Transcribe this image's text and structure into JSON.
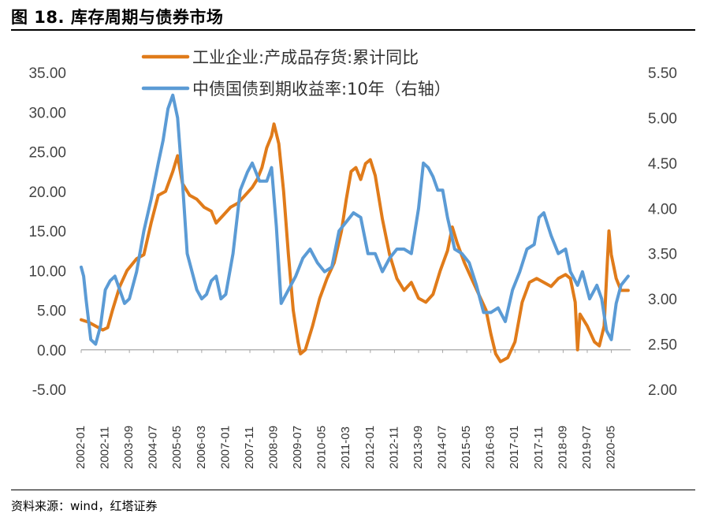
{
  "figure_title": "图 18. 库存周期与债券市场",
  "source_note": "资料来源：wind，红塔证券",
  "chart_data": {
    "type": "line",
    "left_axis": {
      "ylim": [
        -5,
        35
      ],
      "ticks": [
        "35.00",
        "30.00",
        "25.00",
        "20.00",
        "15.00",
        "10.00",
        "5.00",
        "0.00",
        "-5.00"
      ],
      "tick_values": [
        35,
        30,
        25,
        20,
        15,
        10,
        5,
        0,
        -5
      ]
    },
    "right_axis": {
      "ylim": [
        2.0,
        5.5
      ],
      "ticks": [
        "5.50",
        "5.00",
        "4.50",
        "4.00",
        "3.50",
        "3.00",
        "2.50",
        "2.00"
      ],
      "tick_values": [
        5.5,
        5.0,
        4.5,
        4.0,
        3.5,
        3.0,
        2.5,
        2.0
      ]
    },
    "x_axis": {
      "start": "2002-01",
      "end": "2021-01",
      "tick_labels": [
        "2002-01",
        "2002-11",
        "2003-09",
        "2004-07",
        "2005-05",
        "2006-03",
        "2007-01",
        "2007-11",
        "2008-09",
        "2009-07",
        "2010-05",
        "2011-03",
        "2012-01",
        "2012-11",
        "2013-09",
        "2014-07",
        "2015-05",
        "2016-03",
        "2017-01",
        "2017-11",
        "2018-09",
        "2019-07",
        "2020-05"
      ]
    },
    "legend_position": "top",
    "series": [
      {
        "name": "工业企业:产成品存货:累计同比",
        "axis": "left",
        "color": "#E07B1A",
        "points": [
          [
            "2002-01",
            3.8
          ],
          [
            "2002-04",
            3.5
          ],
          [
            "2002-07",
            3.0
          ],
          [
            "2002-10",
            2.5
          ],
          [
            "2002-12",
            2.8
          ],
          [
            "2003-02",
            5.0
          ],
          [
            "2003-05",
            8.0
          ],
          [
            "2003-08",
            10.0
          ],
          [
            "2003-12",
            11.5
          ],
          [
            "2004-03",
            12.0
          ],
          [
            "2004-06",
            16.0
          ],
          [
            "2004-09",
            19.5
          ],
          [
            "2004-12",
            20.0
          ],
          [
            "2005-03",
            22.5
          ],
          [
            "2005-05",
            24.5
          ],
          [
            "2005-07",
            21.0
          ],
          [
            "2005-10",
            19.5
          ],
          [
            "2006-01",
            19.0
          ],
          [
            "2006-04",
            18.0
          ],
          [
            "2006-07",
            17.5
          ],
          [
            "2006-09",
            16.0
          ],
          [
            "2006-12",
            17.0
          ],
          [
            "2007-03",
            18.0
          ],
          [
            "2007-06",
            18.5
          ],
          [
            "2007-09",
            19.5
          ],
          [
            "2007-12",
            20.5
          ],
          [
            "2008-02",
            21.5
          ],
          [
            "2008-04",
            23.0
          ],
          [
            "2008-06",
            25.5
          ],
          [
            "2008-08",
            27.0
          ],
          [
            "2008-09",
            28.5
          ],
          [
            "2008-11",
            26.0
          ],
          [
            "2009-01",
            20.0
          ],
          [
            "2009-03",
            12.0
          ],
          [
            "2009-05",
            5.0
          ],
          [
            "2009-07",
            1.0
          ],
          [
            "2009-08",
            -0.5
          ],
          [
            "2009-10",
            0.0
          ],
          [
            "2010-01",
            3.0
          ],
          [
            "2010-04",
            6.5
          ],
          [
            "2010-07",
            9.0
          ],
          [
            "2010-10",
            11.0
          ],
          [
            "2011-01",
            15.0
          ],
          [
            "2011-03",
            19.0
          ],
          [
            "2011-05",
            22.5
          ],
          [
            "2011-07",
            23.0
          ],
          [
            "2011-09",
            21.5
          ],
          [
            "2011-11",
            23.5
          ],
          [
            "2012-01",
            24.0
          ],
          [
            "2012-03",
            22.0
          ],
          [
            "2012-06",
            16.5
          ],
          [
            "2012-09",
            12.0
          ],
          [
            "2012-12",
            9.0
          ],
          [
            "2013-03",
            7.5
          ],
          [
            "2013-06",
            8.5
          ],
          [
            "2013-09",
            6.5
          ],
          [
            "2013-12",
            6.0
          ],
          [
            "2014-03",
            7.0
          ],
          [
            "2014-06",
            10.0
          ],
          [
            "2014-09",
            12.5
          ],
          [
            "2014-11",
            15.5
          ],
          [
            "2015-01",
            13.5
          ],
          [
            "2015-04",
            11.0
          ],
          [
            "2015-07",
            9.0
          ],
          [
            "2015-10",
            7.0
          ],
          [
            "2016-01",
            5.0
          ],
          [
            "2016-03",
            2.0
          ],
          [
            "2016-05",
            -0.5
          ],
          [
            "2016-07",
            -1.5
          ],
          [
            "2016-10",
            -1.0
          ],
          [
            "2017-01",
            1.0
          ],
          [
            "2017-04",
            6.0
          ],
          [
            "2017-07",
            8.5
          ],
          [
            "2017-10",
            9.0
          ],
          [
            "2018-01",
            8.5
          ],
          [
            "2018-04",
            8.0
          ],
          [
            "2018-07",
            9.0
          ],
          [
            "2018-10",
            9.5
          ],
          [
            "2018-12",
            9.0
          ],
          [
            "2019-02",
            6.0
          ],
          [
            "2019-03",
            0.0
          ],
          [
            "2019-04",
            4.5
          ],
          [
            "2019-07",
            3.0
          ],
          [
            "2019-10",
            1.0
          ],
          [
            "2019-12",
            0.5
          ],
          [
            "2020-02",
            3.0
          ],
          [
            "2020-03",
            9.0
          ],
          [
            "2020-04",
            15.0
          ],
          [
            "2020-05",
            12.0
          ],
          [
            "2020-07",
            9.0
          ],
          [
            "2020-09",
            7.5
          ],
          [
            "2020-12",
            7.5
          ]
        ]
      },
      {
        "name": "中债国债到期收益率:10年（右轴）",
        "axis": "right",
        "color": "#5B9BD5",
        "points": [
          [
            "2002-01",
            3.35
          ],
          [
            "2002-02",
            3.25
          ],
          [
            "2002-03",
            3.0
          ],
          [
            "2002-05",
            2.55
          ],
          [
            "2002-07",
            2.5
          ],
          [
            "2002-09",
            2.7
          ],
          [
            "2002-11",
            3.1
          ],
          [
            "2003-01",
            3.2
          ],
          [
            "2003-03",
            3.25
          ],
          [
            "2003-05",
            3.1
          ],
          [
            "2003-07",
            2.95
          ],
          [
            "2003-09",
            3.0
          ],
          [
            "2003-12",
            3.3
          ],
          [
            "2004-03",
            3.75
          ],
          [
            "2004-06",
            4.1
          ],
          [
            "2004-09",
            4.5
          ],
          [
            "2004-11",
            4.75
          ],
          [
            "2005-01",
            5.1
          ],
          [
            "2005-03",
            5.25
          ],
          [
            "2005-05",
            5.0
          ],
          [
            "2005-07",
            4.3
          ],
          [
            "2005-09",
            3.5
          ],
          [
            "2005-11",
            3.3
          ],
          [
            "2006-01",
            3.1
          ],
          [
            "2006-03",
            3.0
          ],
          [
            "2006-05",
            3.05
          ],
          [
            "2006-07",
            3.2
          ],
          [
            "2006-09",
            3.25
          ],
          [
            "2006-11",
            3.0
          ],
          [
            "2007-01",
            3.05
          ],
          [
            "2007-04",
            3.5
          ],
          [
            "2007-07",
            4.2
          ],
          [
            "2007-10",
            4.4
          ],
          [
            "2007-12",
            4.5
          ],
          [
            "2008-03",
            4.3
          ],
          [
            "2008-06",
            4.3
          ],
          [
            "2008-08",
            4.45
          ],
          [
            "2008-10",
            3.8
          ],
          [
            "2008-12",
            2.95
          ],
          [
            "2009-03",
            3.1
          ],
          [
            "2009-06",
            3.25
          ],
          [
            "2009-09",
            3.45
          ],
          [
            "2009-12",
            3.55
          ],
          [
            "2010-03",
            3.4
          ],
          [
            "2010-06",
            3.3
          ],
          [
            "2010-09",
            3.35
          ],
          [
            "2010-12",
            3.75
          ],
          [
            "2011-03",
            3.85
          ],
          [
            "2011-06",
            3.95
          ],
          [
            "2011-09",
            3.9
          ],
          [
            "2011-12",
            3.5
          ],
          [
            "2012-03",
            3.5
          ],
          [
            "2012-06",
            3.3
          ],
          [
            "2012-09",
            3.45
          ],
          [
            "2012-12",
            3.55
          ],
          [
            "2013-03",
            3.55
          ],
          [
            "2013-06",
            3.5
          ],
          [
            "2013-09",
            4.0
          ],
          [
            "2013-11",
            4.5
          ],
          [
            "2014-01",
            4.45
          ],
          [
            "2014-03",
            4.35
          ],
          [
            "2014-05",
            4.2
          ],
          [
            "2014-07",
            4.2
          ],
          [
            "2014-09",
            3.9
          ],
          [
            "2014-12",
            3.55
          ],
          [
            "2015-03",
            3.5
          ],
          [
            "2015-06",
            3.4
          ],
          [
            "2015-09",
            3.15
          ],
          [
            "2015-12",
            2.85
          ],
          [
            "2016-03",
            2.85
          ],
          [
            "2016-06",
            2.9
          ],
          [
            "2016-09",
            2.75
          ],
          [
            "2016-12",
            3.1
          ],
          [
            "2017-03",
            3.3
          ],
          [
            "2017-06",
            3.55
          ],
          [
            "2017-09",
            3.6
          ],
          [
            "2017-11",
            3.9
          ],
          [
            "2018-01",
            3.95
          ],
          [
            "2018-04",
            3.7
          ],
          [
            "2018-07",
            3.5
          ],
          [
            "2018-10",
            3.55
          ],
          [
            "2018-12",
            3.3
          ],
          [
            "2019-03",
            3.15
          ],
          [
            "2019-05",
            3.3
          ],
          [
            "2019-08",
            3.0
          ],
          [
            "2019-11",
            3.15
          ],
          [
            "2020-01",
            3.0
          ],
          [
            "2020-03",
            2.65
          ],
          [
            "2020-05",
            2.55
          ],
          [
            "2020-07",
            2.95
          ],
          [
            "2020-09",
            3.15
          ],
          [
            "2020-12",
            3.25
          ]
        ]
      }
    ]
  }
}
